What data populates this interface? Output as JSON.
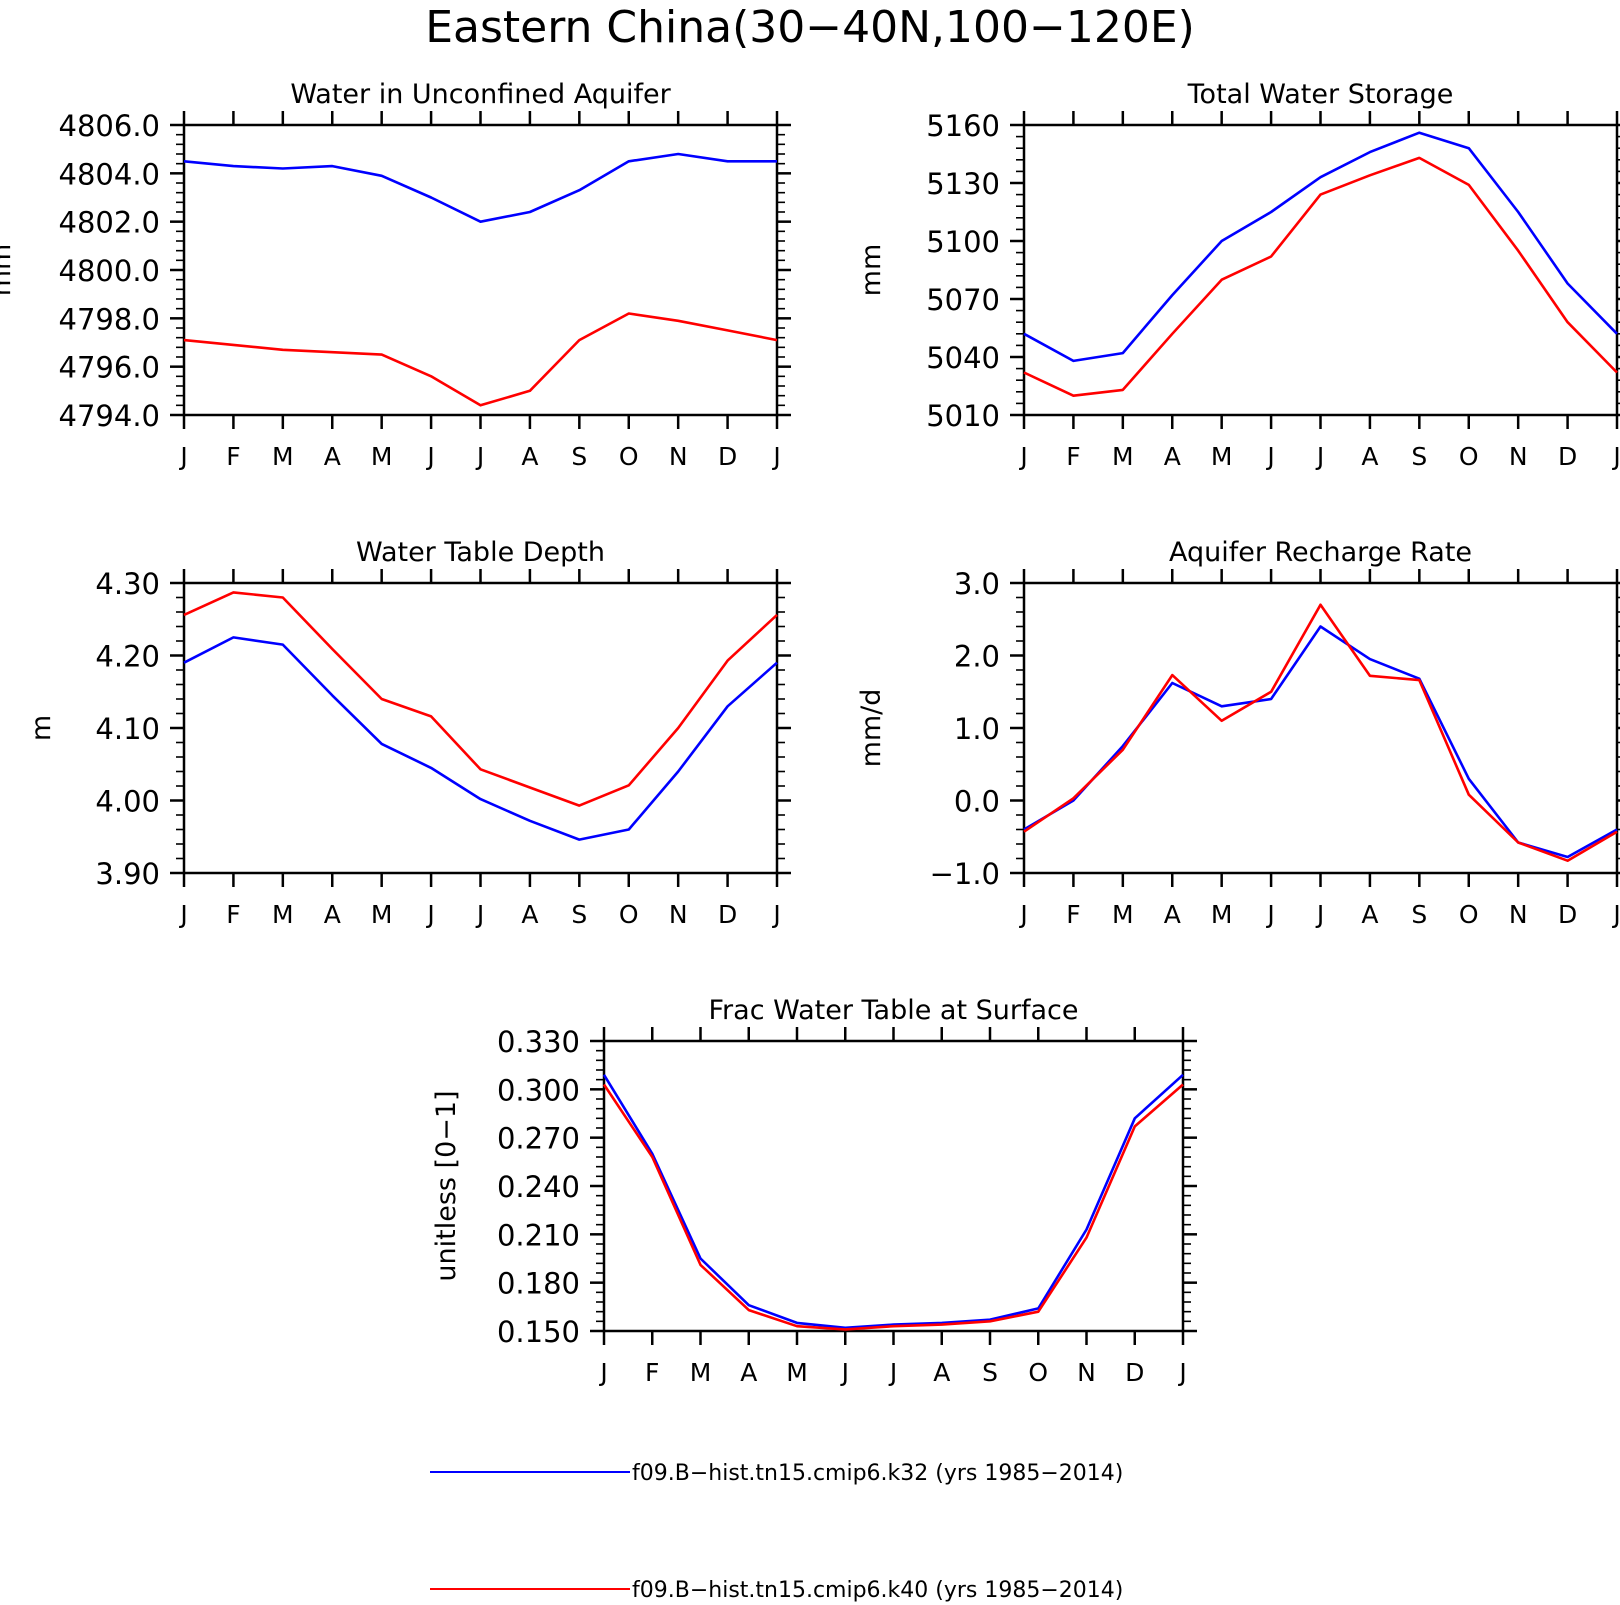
{
  "figure": {
    "title": "Eastern China(30−40N,100−120E)"
  },
  "colors": {
    "k32": "#0000ff",
    "k40": "#ff0000",
    "axis": "#000000"
  },
  "legend": [
    {
      "label": "f09.B−hist.tn15.cmip6.k32 (yrs 1985−2014)",
      "color": "#0000ff"
    },
    {
      "label": "f09.B−hist.tn15.cmip6.k40 (yrs 1985−2014)",
      "color": "#ff0000"
    }
  ],
  "chart_data": [
    {
      "type": "line",
      "title": "Water in Unconfined Aquifer",
      "ylabel": "mm",
      "categories": [
        "J",
        "F",
        "M",
        "A",
        "M",
        "J",
        "J",
        "A",
        "S",
        "O",
        "N",
        "D",
        "J"
      ],
      "ylim": [
        4794,
        4806
      ],
      "yticks": [
        "4794.0",
        "4796.0",
        "4798.0",
        "4800.0",
        "4802.0",
        "4804.0",
        "4806.0"
      ],
      "ytick_values": [
        4794,
        4796,
        4798,
        4800,
        4802,
        4804,
        4806
      ],
      "series": [
        {
          "name": "f09.B−hist.tn15.cmip6.k32 (yrs 1985−2014)",
          "color": "#0000ff",
          "values": [
            4804.5,
            4804.3,
            4804.2,
            4804.3,
            4803.9,
            4803.0,
            4802.0,
            4802.4,
            4803.3,
            4804.5,
            4804.8,
            4804.5,
            4804.5
          ]
        },
        {
          "name": "f09.B−hist.tn15.cmip6.k40 (yrs 1985−2014)",
          "color": "#ff0000",
          "values": [
            4797.1,
            4796.9,
            4796.7,
            4796.6,
            4796.5,
            4795.6,
            4794.4,
            4795.0,
            4797.1,
            4798.2,
            4797.9,
            4797.5,
            4797.1
          ]
        }
      ]
    },
    {
      "type": "line",
      "title": "Total Water Storage",
      "ylabel": "mm",
      "categories": [
        "J",
        "F",
        "M",
        "A",
        "M",
        "J",
        "J",
        "A",
        "S",
        "O",
        "N",
        "D",
        "J"
      ],
      "ylim": [
        5010,
        5160
      ],
      "yticks": [
        "5010",
        "5040",
        "5070",
        "5100",
        "5130",
        "5160"
      ],
      "ytick_values": [
        5010,
        5040,
        5070,
        5100,
        5130,
        5160
      ],
      "series": [
        {
          "name": "f09.B−hist.tn15.cmip6.k32 (yrs 1985−2014)",
          "color": "#0000ff",
          "values": [
            5052,
            5038,
            5042,
            5072,
            5100,
            5115,
            5133,
            5146,
            5156,
            5148,
            5115,
            5078,
            5052
          ]
        },
        {
          "name": "f09.B−hist.tn15.cmip6.k40 (yrs 1985−2014)",
          "color": "#ff0000",
          "values": [
            5032,
            5020,
            5023,
            5052,
            5080,
            5092,
            5124,
            5134,
            5143,
            5129,
            5095,
            5058,
            5032
          ]
        }
      ]
    },
    {
      "type": "line",
      "title": "Water Table Depth",
      "ylabel": "m",
      "categories": [
        "J",
        "F",
        "M",
        "A",
        "M",
        "J",
        "J",
        "A",
        "S",
        "O",
        "N",
        "D",
        "J"
      ],
      "ylim": [
        3.9,
        4.3
      ],
      "yticks": [
        "3.90",
        "4.00",
        "4.10",
        "4.20",
        "4.30"
      ],
      "ytick_values": [
        3.9,
        4.0,
        4.1,
        4.2,
        4.3
      ],
      "series": [
        {
          "name": "f09.B−hist.tn15.cmip6.k32 (yrs 1985−2014)",
          "color": "#0000ff",
          "values": [
            4.19,
            4.225,
            4.215,
            4.145,
            4.078,
            4.045,
            4.002,
            3.972,
            3.946,
            3.96,
            4.04,
            4.13,
            4.19
          ]
        },
        {
          "name": "f09.B−hist.tn15.cmip6.k40 (yrs 1985−2014)",
          "color": "#ff0000",
          "values": [
            4.256,
            4.287,
            4.28,
            4.209,
            4.14,
            4.116,
            4.043,
            4.018,
            3.993,
            4.021,
            4.1,
            4.193,
            4.256
          ]
        }
      ]
    },
    {
      "type": "line",
      "title": "Aquifer Recharge Rate",
      "ylabel": "mm/d",
      "categories": [
        "J",
        "F",
        "M",
        "A",
        "M",
        "J",
        "J",
        "A",
        "S",
        "O",
        "N",
        "D",
        "J"
      ],
      "ylim": [
        -1.0,
        3.0
      ],
      "yticks": [
        "−1.0",
        "0.0",
        "1.0",
        "2.0",
        "3.0"
      ],
      "ytick_values": [
        -1.0,
        0.0,
        1.0,
        2.0,
        3.0
      ],
      "series": [
        {
          "name": "f09.B−hist.tn15.cmip6.k32 (yrs 1985−2014)",
          "color": "#0000ff",
          "values": [
            -0.4,
            0.0,
            0.75,
            1.62,
            1.3,
            1.4,
            2.4,
            1.95,
            1.68,
            0.3,
            -0.58,
            -0.78,
            -0.4
          ]
        },
        {
          "name": "f09.B−hist.tn15.cmip6.k40 (yrs 1985−2014)",
          "color": "#ff0000",
          "values": [
            -0.43,
            0.03,
            0.7,
            1.73,
            1.1,
            1.5,
            2.7,
            1.72,
            1.66,
            0.08,
            -0.58,
            -0.83,
            -0.43
          ]
        }
      ]
    },
    {
      "type": "line",
      "title": "Frac Water Table at Surface",
      "ylabel": "unitless [0−1]",
      "categories": [
        "J",
        "F",
        "M",
        "A",
        "M",
        "J",
        "J",
        "A",
        "S",
        "O",
        "N",
        "D",
        "J"
      ],
      "ylim": [
        0.15,
        0.33
      ],
      "yticks": [
        "0.150",
        "0.180",
        "0.210",
        "0.240",
        "0.270",
        "0.300",
        "0.330"
      ],
      "ytick_values": [
        0.15,
        0.18,
        0.21,
        0.24,
        0.27,
        0.3,
        0.33
      ],
      "series": [
        {
          "name": "f09.B−hist.tn15.cmip6.k32 (yrs 1985−2014)",
          "color": "#0000ff",
          "values": [
            0.309,
            0.26,
            0.195,
            0.166,
            0.155,
            0.152,
            0.154,
            0.155,
            0.157,
            0.164,
            0.213,
            0.282,
            0.309
          ]
        },
        {
          "name": "f09.B−hist.tn15.cmip6.k40 (yrs 1985−2014)",
          "color": "#ff0000",
          "values": [
            0.303,
            0.258,
            0.191,
            0.163,
            0.153,
            0.151,
            0.153,
            0.154,
            0.156,
            0.162,
            0.208,
            0.277,
            0.303
          ]
        }
      ]
    }
  ]
}
